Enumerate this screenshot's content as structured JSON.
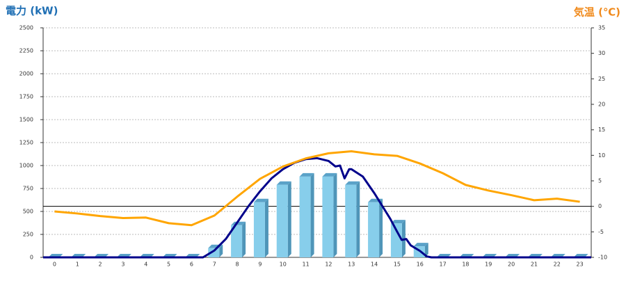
{
  "chart_data": {
    "type": "bar",
    "title_left": "電力 (kW)",
    "title_right": "気温 (℃)",
    "categories": [
      "0",
      "1",
      "2",
      "3",
      "4",
      "5",
      "6",
      "7",
      "8",
      "9",
      "10",
      "11",
      "12",
      "13",
      "14",
      "15",
      "16",
      "17",
      "18",
      "19",
      "20",
      "21",
      "22",
      "23"
    ],
    "ylim": [
      0,
      2500
    ],
    "yticks": [
      0,
      250,
      500,
      750,
      1000,
      1250,
      1500,
      1750,
      2000,
      2250,
      2500
    ],
    "y2lim": [
      -10,
      35
    ],
    "y2ticks": [
      -10,
      -5,
      0,
      5,
      10,
      15,
      20,
      25,
      30,
      35
    ],
    "grid": true,
    "zero_line": true,
    "series": [
      {
        "type": "bar",
        "color": "#87ceeb",
        "values": [
          0,
          0,
          0,
          0,
          0,
          0,
          0,
          100,
          350,
          600,
          790,
          880,
          880,
          790,
          600,
          370,
          120,
          0,
          0,
          0,
          0,
          0,
          0,
          0
        ]
      },
      {
        "type": "line",
        "color": "#00008b",
        "x": [
          -0.5,
          6.5,
          7,
          7.5,
          8,
          8.5,
          9,
          9.5,
          10,
          10.5,
          11,
          11.5,
          12,
          12.3,
          12.5,
          12.7,
          12.9,
          13,
          13.5,
          14,
          14.5,
          14.7,
          15,
          15.2,
          15.4,
          15.6,
          16,
          16.3,
          16.5,
          23.5
        ],
        "values": [
          0,
          0,
          75,
          200,
          380,
          560,
          720,
          860,
          960,
          1030,
          1070,
          1080,
          1050,
          990,
          1000,
          860,
          960,
          960,
          880,
          700,
          500,
          420,
          280,
          190,
          200,
          130,
          70,
          10,
          0,
          0
        ]
      },
      {
        "type": "line",
        "axis": "y2",
        "color": "#ffa500",
        "values": [
          -1.0,
          -1.4,
          -1.9,
          -2.3,
          -2.2,
          -3.3,
          -3.7,
          -1.8,
          1.9,
          5.4,
          7.8,
          9.4,
          10.4,
          10.8,
          10.2,
          9.9,
          8.4,
          6.5,
          4.2,
          3.1,
          2.2,
          1.2,
          1.5,
          0.9
        ]
      }
    ]
  }
}
